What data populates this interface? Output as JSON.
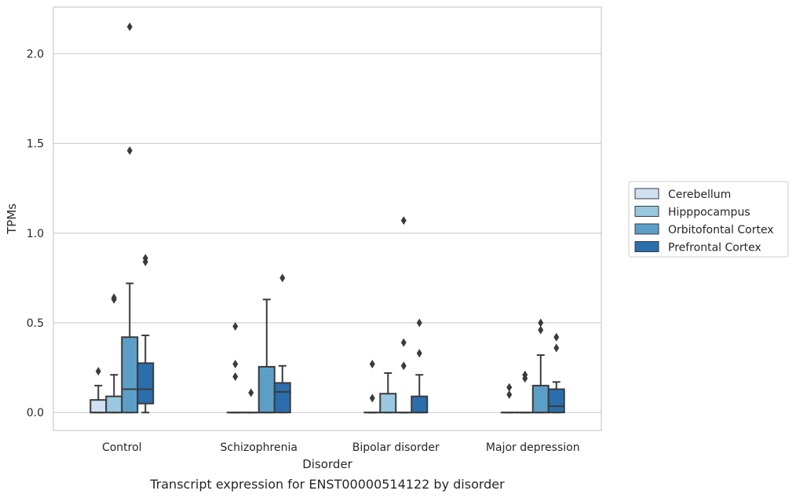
{
  "chart_data": {
    "type": "box",
    "title": "",
    "caption": "Transcript expression for ENST00000514122 by disorder",
    "xlabel": "Disorder",
    "ylabel": "TPMs",
    "ylim": [
      -0.1,
      2.26
    ],
    "yticks": [
      0.0,
      0.5,
      1.0,
      1.5,
      2.0
    ],
    "ytick_labels": [
      "0.0",
      "0.5",
      "1.0",
      "1.5",
      "2.0"
    ],
    "grid": "horizontal",
    "legend_position": "right",
    "categories": [
      "Control",
      "Schizophrenia",
      "Bipolar disorder",
      "Major depression"
    ],
    "series": [
      {
        "name": "Cerebellum",
        "color": "#d0e1f2",
        "boxes": [
          {
            "q1": 0.0,
            "median": 0.0,
            "q3": 0.07,
            "whisker_low": 0.0,
            "whisker_high": 0.15,
            "outliers": [
              0.23
            ]
          },
          {
            "q1": 0.0,
            "median": 0.0,
            "q3": 0.0,
            "whisker_low": 0.0,
            "whisker_high": 0.0,
            "outliers": [
              0.48,
              0.27,
              0.2
            ]
          },
          {
            "q1": 0.0,
            "median": 0.0,
            "q3": 0.0,
            "whisker_low": 0.0,
            "whisker_high": 0.0,
            "outliers": [
              0.27,
              0.08
            ]
          },
          {
            "q1": 0.0,
            "median": 0.0,
            "q3": 0.0,
            "whisker_low": 0.0,
            "whisker_high": 0.0,
            "outliers": [
              0.14,
              0.1
            ]
          }
        ]
      },
      {
        "name": "Hipppocampus",
        "color": "#9ac8e0",
        "boxes": [
          {
            "q1": 0.0,
            "median": 0.0,
            "q3": 0.09,
            "whisker_low": 0.0,
            "whisker_high": 0.21,
            "outliers": [
              0.64,
              0.63
            ]
          },
          {
            "q1": 0.0,
            "median": 0.0,
            "q3": 0.0,
            "whisker_low": 0.0,
            "whisker_high": 0.0,
            "outliers": [
              0.11
            ]
          },
          {
            "q1": 0.0,
            "median": 0.0,
            "q3": 0.105,
            "whisker_low": 0.0,
            "whisker_high": 0.22,
            "outliers": []
          },
          {
            "q1": 0.0,
            "median": 0.0,
            "q3": 0.0,
            "whisker_low": 0.0,
            "whisker_high": 0.0,
            "outliers": [
              0.21,
              0.19
            ]
          }
        ]
      },
      {
        "name": "Orbitofontal Cortex",
        "color": "#5b9fc9",
        "boxes": [
          {
            "q1": 0.0,
            "median": 0.13,
            "q3": 0.42,
            "whisker_low": 0.0,
            "whisker_high": 0.72,
            "outliers": [
              2.15,
              1.46
            ]
          },
          {
            "q1": 0.0,
            "median": 0.0,
            "q3": 0.255,
            "whisker_low": 0.0,
            "whisker_high": 0.63,
            "outliers": []
          },
          {
            "q1": 0.0,
            "median": 0.0,
            "q3": 0.0,
            "whisker_low": 0.0,
            "whisker_high": 0.0,
            "outliers": [
              1.07,
              0.39,
              0.26
            ]
          },
          {
            "q1": 0.0,
            "median": 0.0,
            "q3": 0.15,
            "whisker_low": 0.0,
            "whisker_high": 0.32,
            "outliers": [
              0.5,
              0.46
            ]
          }
        ]
      },
      {
        "name": "Prefrontal Cortex",
        "color": "#2a6ead",
        "boxes": [
          {
            "q1": 0.05,
            "median": 0.13,
            "q3": 0.275,
            "whisker_low": 0.0,
            "whisker_high": 0.43,
            "outliers": [
              0.86,
              0.84
            ]
          },
          {
            "q1": 0.0,
            "median": 0.115,
            "q3": 0.165,
            "whisker_low": 0.0,
            "whisker_high": 0.26,
            "outliers": [
              0.75
            ]
          },
          {
            "q1": 0.0,
            "median": 0.0,
            "q3": 0.09,
            "whisker_low": 0.0,
            "whisker_high": 0.21,
            "outliers": [
              0.5,
              0.33
            ]
          },
          {
            "q1": 0.0,
            "median": 0.035,
            "q3": 0.13,
            "whisker_low": 0.0,
            "whisker_high": 0.17,
            "outliers": [
              0.42,
              0.36
            ]
          }
        ]
      }
    ]
  }
}
